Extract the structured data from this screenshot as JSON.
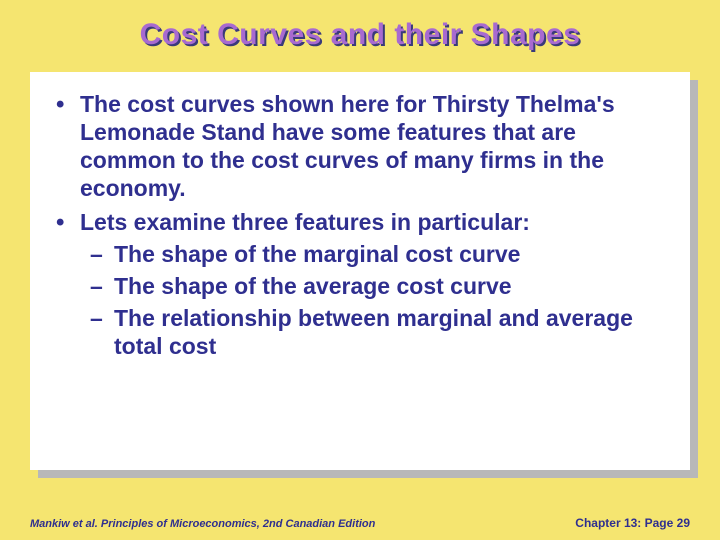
{
  "title": "Cost Curves and their Shapes",
  "bullets": {
    "b1": "The cost curves shown here for Thirsty Thelma's Lemonade Stand have some features that are common to the cost curves of many firms in the economy.",
    "b2": "Lets examine three features in particular:",
    "sub1": "The shape of the marginal cost curve",
    "sub2": "The shape of the average cost curve",
    "sub3": "The relationship between marginal and average total cost"
  },
  "footer": {
    "left": "Mankiw et al. Principles of Microeconomics, 2nd Canadian Edition",
    "right": "Chapter 13: Page 29"
  },
  "colors": {
    "background": "#f5e570",
    "text": "#2f2f8f",
    "title_fill": "#a86ad0",
    "title_shadow": "#3a3a7a",
    "box_bg": "#ffffff",
    "box_shadow": "#b8b8b8"
  }
}
